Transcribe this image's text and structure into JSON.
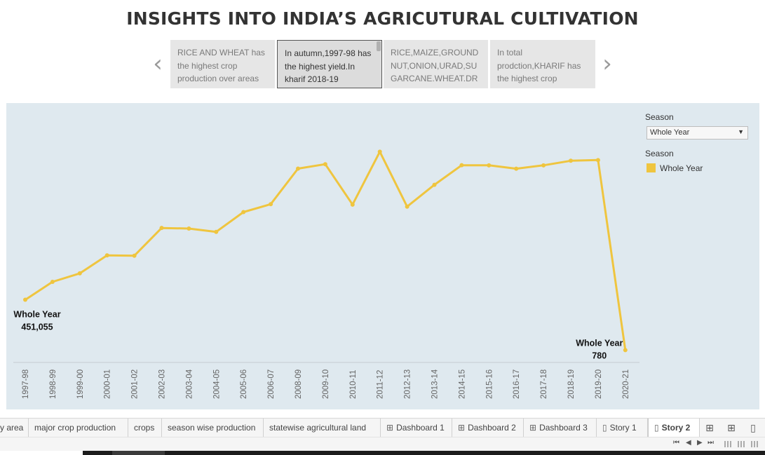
{
  "title": "INSIGHTS INTO INDIA’S AGRICUTURAL CULTIVATION",
  "story_nav": {
    "prev_arrow": "‹",
    "next_arrow": "›"
  },
  "story_points": [
    {
      "text": "RICE AND WHEAT has the highest crop production over areas"
    },
    {
      "text": "In autumn,1997-98 has the highest yield.In kharif 2018-19"
    },
    {
      "text": "RICE,MAIZE,GROUNDNUT,ONION,URAD,SUGARCANE.WHEAT.DRY"
    },
    {
      "text": "In total prodction,KHARIF has the highest crop"
    }
  ],
  "legend": {
    "filter_title": "Season",
    "filter_value": "Whole Year",
    "color_title": "Season",
    "color_label": "Whole Year"
  },
  "colors": {
    "line": "#efc53f",
    "chart_bg": "#dfe9ef"
  },
  "chart_data": {
    "type": "line",
    "categories": [
      "1997-98",
      "1998-99",
      "1999-00",
      "2000-01",
      "2001-02",
      "2002-03",
      "2003-04",
      "2004-05",
      "2005-06",
      "2006-07",
      "2008-09",
      "2009-10",
      "2010-11",
      "2011-12",
      "2012-13",
      "2013-14",
      "2014-15",
      "2015-16",
      "2016-17",
      "2017-18",
      "2018-19",
      "2019-20",
      "2020-21"
    ],
    "series": [
      {
        "name": "Whole Year",
        "values": [
          451055,
          611000,
          687000,
          848000,
          845000,
          1093000,
          1088000,
          1058000,
          1235000,
          1306000,
          1624000,
          1663000,
          1302000,
          1775000,
          1284000,
          1479000,
          1654000,
          1653000,
          1623000,
          1653000,
          1694000,
          1700000,
          780
        ]
      }
    ],
    "ylim": [
      0,
      2210000
    ],
    "annotations": [
      {
        "index": 0,
        "label": "Whole Year",
        "value": "451,055"
      },
      {
        "index": 22,
        "label": "Whole Year",
        "value": "780"
      }
    ]
  },
  "tabs": [
    {
      "label": "y area",
      "icon": ""
    },
    {
      "label": "major crop production",
      "icon": ""
    },
    {
      "label": "crops",
      "icon": ""
    },
    {
      "label": "season wise production",
      "icon": ""
    },
    {
      "label": "statewise agricultural land",
      "icon": ""
    },
    {
      "label": "Dashboard 1",
      "icon": "⊞"
    },
    {
      "label": "Dashboard 2",
      "icon": "⊞"
    },
    {
      "label": "Dashboard 3",
      "icon": "⊞"
    },
    {
      "label": "Story 1",
      "icon": "▯"
    },
    {
      "label": "Story 2",
      "icon": "▯"
    }
  ],
  "new_buttons": [
    "new-worksheet-icon",
    "new-dashboard-icon",
    "new-story-icon"
  ],
  "pager": {
    "first": "⏮",
    "prev": "◀",
    "next": "▶",
    "last": "⏭"
  }
}
